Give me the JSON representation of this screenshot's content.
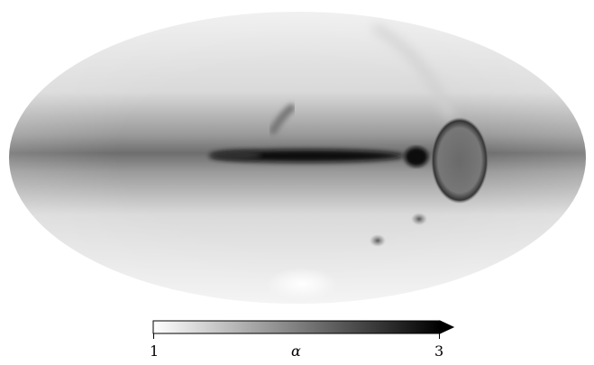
{
  "map": {
    "projection": "mollweide",
    "colormap": "greys",
    "description_of_features": [
      "galactic-plane-band",
      "central-dark-streak",
      "large-dark-ellipse",
      "small-blob-1",
      "small-blob-2",
      "small-blob-3"
    ]
  },
  "colorbar": {
    "min_label": "1",
    "max_label": "3",
    "variable_label": "α",
    "extend": "max",
    "color_low": "#ffffff",
    "color_high": "#000000"
  }
}
